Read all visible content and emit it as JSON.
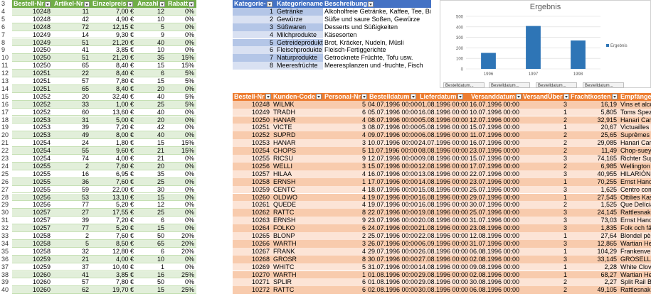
{
  "colors": {
    "green_header": "#70ad47",
    "green_band": "#e2efda",
    "blue_header": "#4472c4",
    "blue_band": "#d9e1f2",
    "blue_band2": "#b4c6e7",
    "orange_header": "#ed7d31",
    "orange_band": "#fce4d6",
    "orange_band2": "#f8cbad",
    "bar_color": "#2e75b6"
  },
  "row_numbers": [
    "3",
    "4",
    "5",
    "6",
    "7",
    "8",
    "9",
    "10",
    "11",
    "12",
    "13",
    "14",
    "15",
    "16",
    "17",
    "18",
    "19",
    "20",
    "21",
    "22",
    "23",
    "24",
    "25",
    "26",
    "27",
    "28",
    "29",
    "30",
    "31",
    "32",
    "33",
    "34",
    "35",
    "36",
    "37",
    "38",
    "39",
    "40"
  ],
  "table1": {
    "headers": [
      "Bestell-Nr",
      "Artikel-Nr",
      "Einzelpreis",
      "Anzahl",
      "Rabatt"
    ],
    "rows": [
      [
        "10248",
        "11",
        "7,00 €",
        "12",
        "0%"
      ],
      [
        "10248",
        "42",
        "4,90 €",
        "10",
        "0%"
      ],
      [
        "10248",
        "72",
        "12,15 €",
        "5",
        "0%"
      ],
      [
        "10249",
        "14",
        "9,30 €",
        "9",
        "0%"
      ],
      [
        "10249",
        "51",
        "21,20 €",
        "40",
        "0%"
      ],
      [
        "10250",
        "41",
        "3,85 €",
        "10",
        "0%"
      ],
      [
        "10250",
        "51",
        "21,20 €",
        "35",
        "15%"
      ],
      [
        "10250",
        "65",
        "8,40 €",
        "15",
        "15%"
      ],
      [
        "10251",
        "22",
        "8,40 €",
        "6",
        "5%"
      ],
      [
        "10251",
        "57",
        "7,80 €",
        "15",
        "5%"
      ],
      [
        "10251",
        "65",
        "8,40 €",
        "20",
        "0%"
      ],
      [
        "10252",
        "20",
        "32,40 €",
        "40",
        "5%"
      ],
      [
        "10252",
        "33",
        "1,00 €",
        "25",
        "5%"
      ],
      [
        "10252",
        "60",
        "13,60 €",
        "40",
        "0%"
      ],
      [
        "10253",
        "31",
        "5,00 €",
        "20",
        "0%"
      ],
      [
        "10253",
        "39",
        "7,20 €",
        "42",
        "0%"
      ],
      [
        "10253",
        "49",
        "8,00 €",
        "40",
        "0%"
      ],
      [
        "10254",
        "24",
        "1,80 €",
        "15",
        "15%"
      ],
      [
        "10254",
        "55",
        "9,60 €",
        "21",
        "15%"
      ],
      [
        "10254",
        "74",
        "4,00 €",
        "21",
        "0%"
      ],
      [
        "10255",
        "2",
        "7,60 €",
        "20",
        "0%"
      ],
      [
        "10255",
        "16",
        "6,95 €",
        "35",
        "0%"
      ],
      [
        "10255",
        "36",
        "7,60 €",
        "25",
        "0%"
      ],
      [
        "10255",
        "59",
        "22,00 €",
        "30",
        "0%"
      ],
      [
        "10256",
        "53",
        "13,10 €",
        "15",
        "0%"
      ],
      [
        "10256",
        "77",
        "5,20 €",
        "12",
        "0%"
      ],
      [
        "10257",
        "27",
        "17,55 €",
        "25",
        "0%"
      ],
      [
        "10257",
        "39",
        "7,20 €",
        "6",
        "0%"
      ],
      [
        "10257",
        "77",
        "5,20 €",
        "15",
        "0%"
      ],
      [
        "10258",
        "2",
        "7,60 €",
        "50",
        "20%"
      ],
      [
        "10258",
        "5",
        "8,50 €",
        "65",
        "20%"
      ],
      [
        "10258",
        "32",
        "12,80 €",
        "6",
        "20%"
      ],
      [
        "10259",
        "21",
        "4,00 €",
        "10",
        "0%"
      ],
      [
        "10259",
        "37",
        "10,40 €",
        "1",
        "0%"
      ],
      [
        "10260",
        "41",
        "3,85 €",
        "16",
        "25%"
      ],
      [
        "10260",
        "57",
        "7,80 €",
        "50",
        "0%"
      ],
      [
        "10260",
        "62",
        "19,70 €",
        "15",
        "25%"
      ]
    ]
  },
  "table2": {
    "headers": [
      "Kategorie-",
      "Kategoriename",
      "Beschreibung"
    ],
    "rows": [
      [
        "1",
        "Getränke",
        "Alkoholfreie Getränke, Kaffee, Tee, Bier"
      ],
      [
        "2",
        "Gewürze",
        "Süße und saure Soßen, Gewürze"
      ],
      [
        "3",
        "Süßwaren",
        "Desserts und Süßigkeiten"
      ],
      [
        "4",
        "Milchprodukte",
        "Käsesorten"
      ],
      [
        "5",
        "Getreideprodukte",
        "Brot, Kräcker, Nudeln, Müsli"
      ],
      [
        "6",
        "Fleischprodukte",
        "Fleisch-Fertiggerichte"
      ],
      [
        "7",
        "Naturprodukte",
        "Getrocknete Früchte, Tofu usw."
      ],
      [
        "8",
        "Meeresfrüchte",
        "Meeresplanzen und -fruchte, Fisch"
      ]
    ]
  },
  "table3": {
    "headers": [
      "Bestell-Nr",
      "Kunden-Code",
      "Personal-Nr",
      "Bestelldatum",
      "Lieferdatum",
      "Versanddatum",
      "VersandÜber",
      "Frachtkosten",
      "Empfänger"
    ],
    "rows": [
      [
        "10248",
        "WILMK",
        "5",
        "04.07.1996 00:00",
        "01.08.1996 00:00",
        "16.07.1996 00:00",
        "3",
        "16,19",
        "Vins et alco"
      ],
      [
        "10249",
        "TRADH",
        "6",
        "05.07.1996 00:00",
        "16.08.1996 00:00",
        "10.07.1996 00:00",
        "1",
        "5,805",
        "Toms Spez"
      ],
      [
        "10250",
        "HANAR",
        "4",
        "08.07.1996 00:00",
        "05.08.1996 00:00",
        "12.07.1996 00:00",
        "2",
        "32,915",
        "Hanari Carn"
      ],
      [
        "10251",
        "VICTE",
        "3",
        "08.07.1996 00:00",
        "05.08.1996 00:00",
        "15.07.1996 00:00",
        "1",
        "20,67",
        "Victuailles e"
      ],
      [
        "10252",
        "SUPRD",
        "4",
        "09.07.1996 00:00",
        "06.08.1996 00:00",
        "11.07.1996 00:00",
        "2",
        "25,65",
        "Suprêmes d"
      ],
      [
        "10253",
        "HANAR",
        "3",
        "10.07.1996 00:00",
        "24.07.1996 00:00",
        "16.07.1996 00:00",
        "2",
        "29,085",
        "Hanari Carn"
      ],
      [
        "10254",
        "CHOPS",
        "5",
        "11.07.1996 00:00",
        "08.08.1996 00:00",
        "23.07.1996 00:00",
        "2",
        "11,49",
        "Chop-suey"
      ],
      [
        "10255",
        "RICSU",
        "9",
        "12.07.1996 00:00",
        "09.08.1996 00:00",
        "15.07.1996 00:00",
        "3",
        "74,165",
        "Richter Sup"
      ],
      [
        "10256",
        "WELLI",
        "3",
        "15.07.1996 00:00",
        "12.08.1996 00:00",
        "17.07.1996 00:00",
        "2",
        "6,985",
        "Wellington I"
      ],
      [
        "10257",
        "HILAA",
        "4",
        "16.07.1996 00:00",
        "13.08.1996 00:00",
        "22.07.1996 00:00",
        "3",
        "40,955",
        "HILARIÓN-A"
      ],
      [
        "10258",
        "ERNSH",
        "1",
        "17.07.1996 00:00",
        "14.08.1996 00:00",
        "23.07.1996 00:00",
        "1",
        "70,255",
        "Ernst Hand"
      ],
      [
        "10259",
        "CENTC",
        "4",
        "18.07.1996 00:00",
        "15.08.1996 00:00",
        "25.07.1996 00:00",
        "3",
        "1,625",
        "Centro com"
      ],
      [
        "10260",
        "OLDWO",
        "4",
        "19.07.1996 00:00",
        "16.08.1996 00:00",
        "29.07.1996 00:00",
        "1",
        "27,545",
        "Ottilies Kas"
      ],
      [
        "10261",
        "QUEDE",
        "4",
        "19.07.1996 00:00",
        "16.08.1996 00:00",
        "30.07.1996 00:00",
        "2",
        "1,525",
        "Que Delícia"
      ],
      [
        "10262",
        "RATTC",
        "8",
        "22.07.1996 00:00",
        "19.08.1996 00:00",
        "25.07.1996 00:00",
        "3",
        "24,145",
        "Rattlesnake"
      ],
      [
        "10263",
        "ERNSH",
        "9",
        "23.07.1996 00:00",
        "20.08.1996 00:00",
        "31.07.1996 00:00",
        "3",
        "73,03",
        "Ernst Hand"
      ],
      [
        "10264",
        "FOLKO",
        "6",
        "24.07.1996 00:00",
        "21.08.1996 00:00",
        "23.08.1996 00:00",
        "3",
        "1,835",
        "Folk och fä"
      ],
      [
        "10265",
        "BLONP",
        "2",
        "25.07.1996 00:00",
        "22.08.1996 00:00",
        "12.08.1996 00:00",
        "1",
        "27,64",
        "Blondel pèr"
      ],
      [
        "10266",
        "WARTH",
        "3",
        "26.07.1996 00:00",
        "06.09.1996 00:00",
        "31.07.1996 00:00",
        "3",
        "12,865",
        "Wartian Her"
      ],
      [
        "10267",
        "FRANK",
        "4",
        "29.07.1996 00:00",
        "26.08.1996 00:00",
        "06.08.1996 00:00",
        "1",
        "104,29",
        "Frankenver"
      ],
      [
        "10268",
        "GROSR",
        "8",
        "30.07.1996 00:00",
        "27.08.1996 00:00",
        "02.08.1996 00:00",
        "3",
        "33,145",
        "GROSELLA"
      ],
      [
        "10269",
        "WHITC",
        "5",
        "31.07.1996 00:00",
        "14.08.1996 00:00",
        "09.08.1996 00:00",
        "1",
        "2,28",
        "White Clove"
      ],
      [
        "10270",
        "WARTH",
        "1",
        "01.08.1996 00:00",
        "29.08.1996 00:00",
        "02.08.1996 00:00",
        "1",
        "68,27",
        "Wartian Her"
      ],
      [
        "10271",
        "SPLIR",
        "6",
        "01.08.1996 00:00",
        "29.08.1996 00:00",
        "30.08.1996 00:00",
        "2",
        "2,27",
        "Split Rail B"
      ],
      [
        "10272",
        "RATTC",
        "6",
        "02.08.1996 00:00",
        "30.08.1996 00:00",
        "06.08.1996 00:00",
        "2",
        "49,105",
        "Rattlesnake"
      ]
    ]
  },
  "chart_data": {
    "type": "bar",
    "title": "Ergebnis",
    "categories": [
      "1996",
      "1997",
      "1998"
    ],
    "series": [
      {
        "name": "Ergebnis",
        "values": [
          152,
          408,
          270
        ]
      }
    ],
    "ylim": [
      0,
      500
    ],
    "yticks": [
      "0",
      "100",
      "200",
      "300",
      "400",
      "500"
    ],
    "legend": "right",
    "field_buttons": [
      "Bestelldatum...",
      "Bestelldatum...",
      "Bestelldatum...",
      "Bestelldatum..."
    ]
  }
}
